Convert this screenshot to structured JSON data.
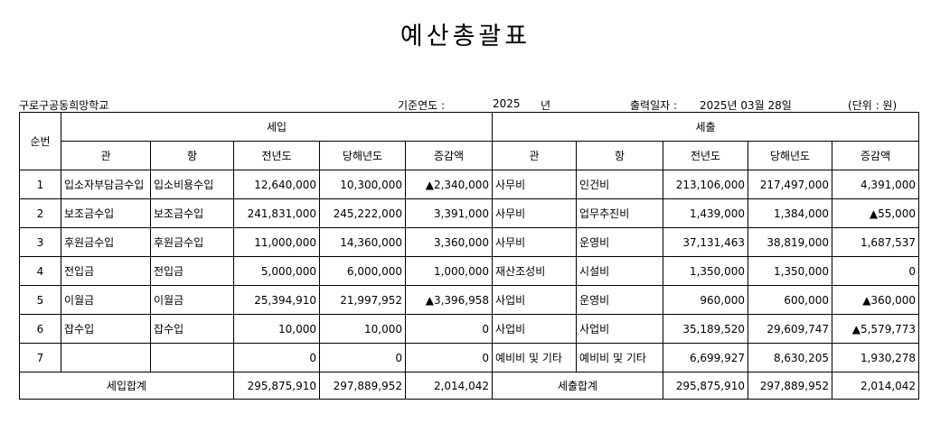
{
  "document": {
    "title": "예산총괄표",
    "school": "구로구공동희망학교",
    "base_year_label": "기준연도 :",
    "base_year": "2025",
    "year_unit": "년",
    "print_date_label": "출력일자 :",
    "print_date": "2025년 03월 28일",
    "unit": "(단위 : 원)"
  },
  "table": {
    "seq_header": "순번",
    "revenue_header": "세입",
    "expense_header": "세출",
    "col_gwan": "관",
    "col_hang": "항",
    "col_prev": "전년도",
    "col_curr": "당해년도",
    "col_diff": "증감액",
    "rows": [
      {
        "seq": "1",
        "r_gwan": "입소자부담금수입",
        "r_hang": "입소비용수입",
        "r_prev": "12,640,000",
        "r_curr": "10,300,000",
        "r_diff": "▲2,340,000",
        "e_gwan": "사무비",
        "e_hang": "인건비",
        "e_prev": "213,106,000",
        "e_curr": "217,497,000",
        "e_diff": "4,391,000"
      },
      {
        "seq": "2",
        "r_gwan": "보조금수입",
        "r_hang": "보조금수입",
        "r_prev": "241,831,000",
        "r_curr": "245,222,000",
        "r_diff": "3,391,000",
        "e_gwan": "사무비",
        "e_hang": "업무추진비",
        "e_prev": "1,439,000",
        "e_curr": "1,384,000",
        "e_diff": "▲55,000"
      },
      {
        "seq": "3",
        "r_gwan": "후원금수입",
        "r_hang": "후원금수입",
        "r_prev": "11,000,000",
        "r_curr": "14,360,000",
        "r_diff": "3,360,000",
        "e_gwan": "사무비",
        "e_hang": "운영비",
        "e_prev": "37,131,463",
        "e_curr": "38,819,000",
        "e_diff": "1,687,537"
      },
      {
        "seq": "4",
        "r_gwan": "전입금",
        "r_hang": "전입금",
        "r_prev": "5,000,000",
        "r_curr": "6,000,000",
        "r_diff": "1,000,000",
        "e_gwan": "재산조성비",
        "e_hang": "시설비",
        "e_prev": "1,350,000",
        "e_curr": "1,350,000",
        "e_diff": "0"
      },
      {
        "seq": "5",
        "r_gwan": "이월금",
        "r_hang": "이월금",
        "r_prev": "25,394,910",
        "r_curr": "21,997,952",
        "r_diff": "▲3,396,958",
        "e_gwan": "사업비",
        "e_hang": "운영비",
        "e_prev": "960,000",
        "e_curr": "600,000",
        "e_diff": "▲360,000"
      },
      {
        "seq": "6",
        "r_gwan": "잡수입",
        "r_hang": "잡수입",
        "r_prev": "10,000",
        "r_curr": "10,000",
        "r_diff": "0",
        "e_gwan": "사업비",
        "e_hang": "사업비",
        "e_prev": "35,189,520",
        "e_curr": "29,609,747",
        "e_diff": "▲5,579,773"
      },
      {
        "seq": "7",
        "r_gwan": "",
        "r_hang": "",
        "r_prev": "0",
        "r_curr": "0",
        "r_diff": "0",
        "e_gwan": "예비비 및 기타",
        "e_hang": "예비비 및 기타",
        "e_prev": "6,699,927",
        "e_curr": "8,630,205",
        "e_diff": "1,930,278"
      }
    ],
    "totals": {
      "r_label": "세입합계",
      "r_prev": "295,875,910",
      "r_curr": "297,889,952",
      "r_diff": "2,014,042",
      "e_label": "세출합계",
      "e_prev": "295,875,910",
      "e_curr": "297,889,952",
      "e_diff": "2,014,042"
    }
  }
}
